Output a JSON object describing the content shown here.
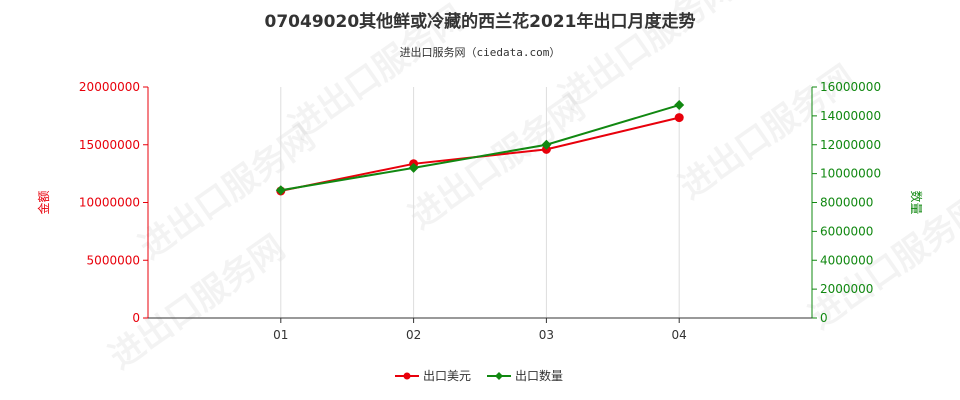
{
  "chart_data": {
    "type": "line",
    "title": "07049020其他鲜或冷藏的西兰花2021年出口月度走势",
    "subtitle": "进出口服务网（ciedata.com）",
    "categories": [
      "01",
      "02",
      "03",
      "04"
    ],
    "ylabel_left": "金额",
    "ylabel_right": "数量",
    "ylim_left": [
      0,
      20000000
    ],
    "ylim_right": [
      0,
      16000000
    ],
    "yticks_left": [
      "0",
      "5000000",
      "10000000",
      "15000000",
      "20000000"
    ],
    "yticks_right": [
      "0",
      "2000000",
      "4000000",
      "6000000",
      "8000000",
      "10000000",
      "12000000",
      "14000000",
      "16000000"
    ],
    "grid": "vertical",
    "legend_position": "bottom-center",
    "series": [
      {
        "name": "出口美元",
        "axis": "left",
        "color": "#e8000b",
        "marker": "circle",
        "values": [
          11000000,
          13350000,
          14600000,
          17350000
        ]
      },
      {
        "name": "出口数量",
        "axis": "right",
        "color": "#118811",
        "marker": "diamond",
        "values": [
          8850000,
          10400000,
          12000000,
          14750000
        ]
      }
    ],
    "watermark": "进出口服务网"
  },
  "colors": {
    "left_axis": "#e8000b",
    "right_axis": "#118811",
    "grid": "#dddddd"
  }
}
